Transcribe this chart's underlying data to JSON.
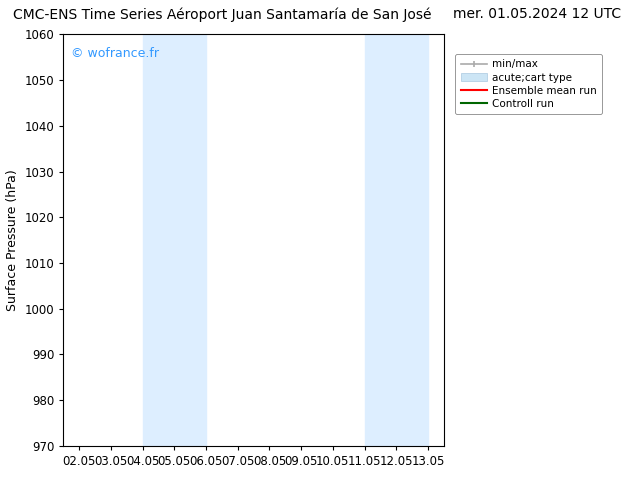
{
  "title_left": "CMC-ENS Time Series Aéroport Juan Santamaría de San José",
  "title_right": "mer. 01.05.2024 12 UTC",
  "ylabel": "Surface Pressure (hPa)",
  "ylim": [
    970,
    1060
  ],
  "yticks": [
    970,
    980,
    990,
    1000,
    1010,
    1020,
    1030,
    1040,
    1050,
    1060
  ],
  "xtick_labels": [
    "02.05",
    "03.05",
    "04.05",
    "05.05",
    "06.05",
    "07.05",
    "08.05",
    "09.05",
    "10.05",
    "11.05",
    "12.05",
    "13.05"
  ],
  "xtick_positions": [
    0,
    1,
    2,
    3,
    4,
    5,
    6,
    7,
    8,
    9,
    10,
    11
  ],
  "xlim": [
    -0.5,
    11.5
  ],
  "shaded_bands": [
    {
      "xmin": 2,
      "xmax": 4,
      "color": "#ddeeff"
    },
    {
      "xmin": 9,
      "xmax": 11,
      "color": "#ddeeff"
    }
  ],
  "watermark": "© wofrance.fr",
  "watermark_color": "#3399ff",
  "bg_color": "#ffffff",
  "plot_bg_color": "#ffffff",
  "legend_entries": [
    {
      "label": "min/max"
    },
    {
      "label": "acute;cart type"
    },
    {
      "label": "Ensemble mean run"
    },
    {
      "label": "Controll run"
    }
  ],
  "title_fontsize": 10,
  "tick_fontsize": 8.5,
  "ylabel_fontsize": 9
}
